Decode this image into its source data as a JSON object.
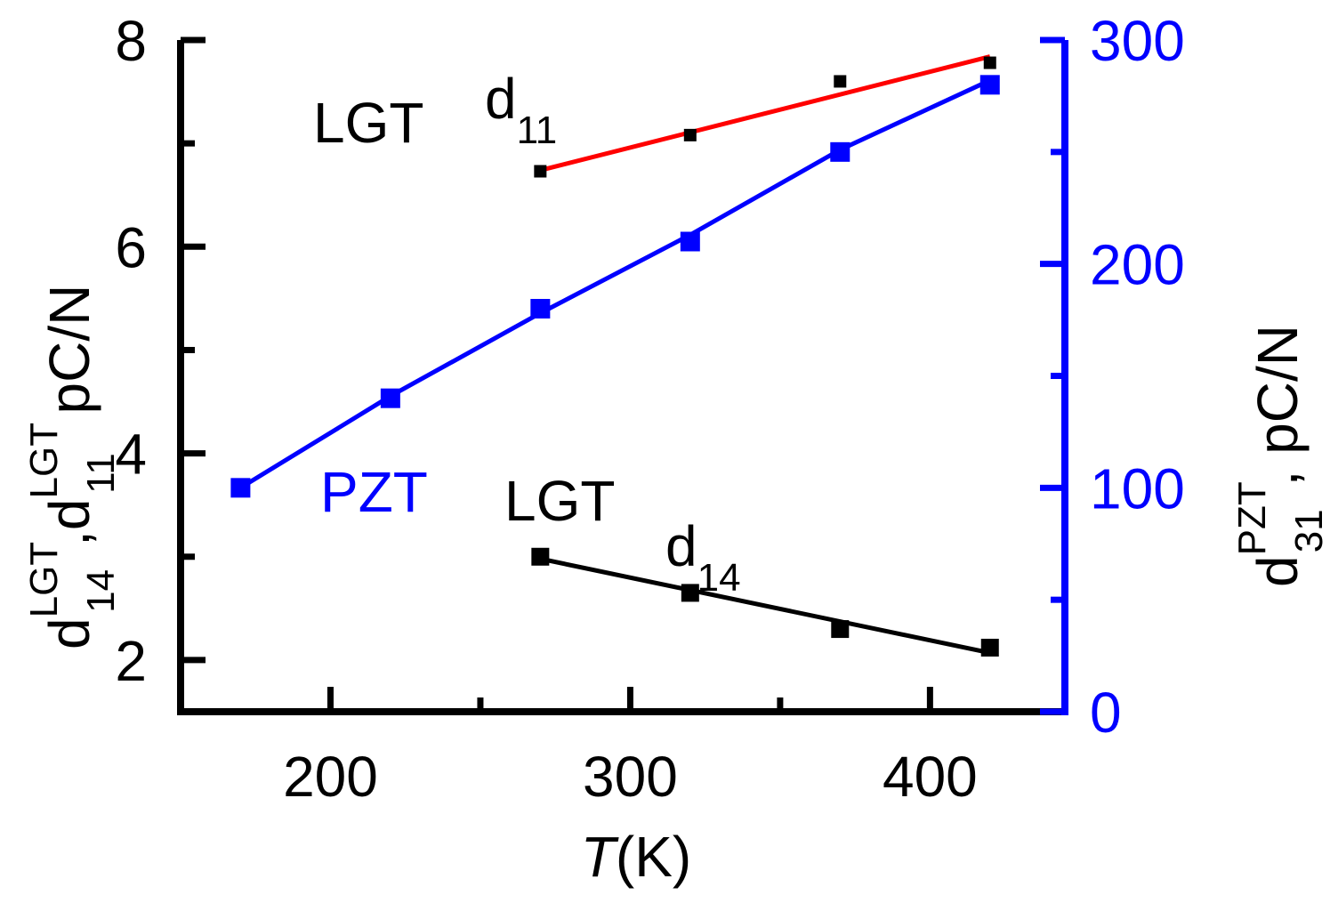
{
  "chart_data": {
    "type": "scatter",
    "xlabel": {
      "italic": "T",
      "rest": "(K)"
    },
    "ylabel_left": {
      "d14": "d",
      "d14_sub": "14",
      "d14_sup": "LGT",
      "sep": ",",
      "d11": "d",
      "d11_sub": "11",
      "d11_sup": "LGT",
      "unit": " pC/N"
    },
    "ylabel_right": {
      "d": "d",
      "sub": "31",
      "sup": "PZT",
      "unit": ", pC/N"
    },
    "xlim": [
      150,
      445
    ],
    "ylim_left": [
      1.5,
      8
    ],
    "ylim_right": [
      0,
      300
    ],
    "x_ticks": [
      "200",
      "300",
      "400"
    ],
    "y_left_ticks": [
      "2",
      "4",
      "6",
      "8"
    ],
    "y_right_ticks": [
      "0",
      "100",
      "200",
      "300"
    ],
    "annotations": {
      "lgt_top": "LGT",
      "d11_main": "d",
      "d11_sub": "11",
      "pzt": "PZT",
      "lgt_bottom": "LGT",
      "d14_main": "d",
      "d14_sub": "14"
    },
    "colors": {
      "black": "#000000",
      "red": "#ff0000",
      "blue": "#0000ff"
    },
    "series": [
      {
        "name": "d11 LGT",
        "axis": "left",
        "marker_color": "#000000",
        "fit_color": "#ff0000",
        "x": [
          270,
          320,
          370,
          420
        ],
        "values": [
          6.73,
          7.08,
          7.6,
          7.78
        ],
        "fit": [
          [
            270,
            6.74
          ],
          [
            420,
            7.84
          ]
        ]
      },
      {
        "name": "d31 PZT",
        "axis": "right",
        "marker_color": "#0000ff",
        "fit_color": "#0000ff",
        "x": [
          170,
          220,
          270,
          320,
          370,
          420
        ],
        "values": [
          100,
          140,
          180,
          210,
          250,
          280
        ],
        "fit": [
          [
            170,
            100
          ],
          [
            220,
            141
          ],
          [
            270,
            178
          ],
          [
            320,
            213
          ],
          [
            370,
            251
          ],
          [
            420,
            282
          ]
        ]
      },
      {
        "name": "d14 LGT",
        "axis": "left",
        "marker_color": "#000000",
        "fit_color": "#000000",
        "x": [
          270,
          320,
          370,
          420
        ],
        "values": [
          3.0,
          2.65,
          2.3,
          2.12
        ],
        "fit": [
          [
            270,
            2.98
          ],
          [
            420,
            2.07
          ]
        ]
      }
    ]
  }
}
